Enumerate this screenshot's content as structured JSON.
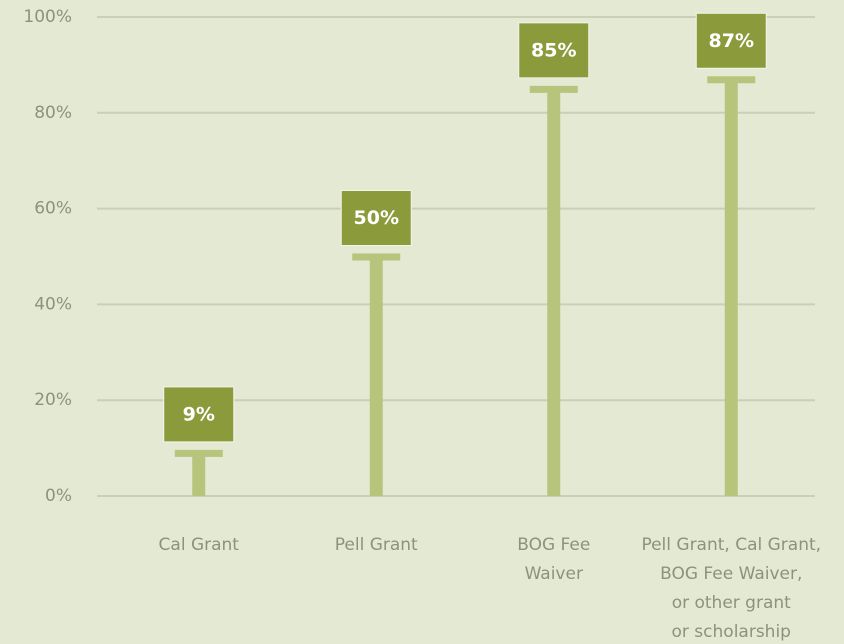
{
  "chart_data": {
    "type": "bar",
    "categories": [
      [
        "Cal Grant"
      ],
      [
        "Pell Grant"
      ],
      [
        "BOG Fee",
        "Waiver"
      ],
      [
        "Pell Grant, Cal Grant,",
        "BOG Fee Waiver,",
        "or other grant",
        "or scholarship"
      ]
    ],
    "values": [
      9,
      50,
      85,
      87
    ],
    "value_labels": [
      "9%",
      "50%",
      "85%",
      "87%"
    ],
    "color": "#b6c47c",
    "label_color": "#8b9b3c",
    "ylim": [
      0,
      100
    ],
    "yticks": [
      {
        "value": 0,
        "label": "0%"
      },
      {
        "value": 20,
        "label": "20%"
      },
      {
        "value": 40,
        "label": "40%"
      },
      {
        "value": 60,
        "label": "60%"
      },
      {
        "value": 80,
        "label": "80%"
      },
      {
        "value": 100,
        "label": "100%"
      }
    ],
    "grid": true
  }
}
